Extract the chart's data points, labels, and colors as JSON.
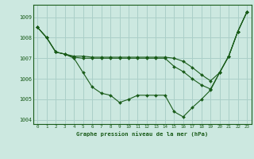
{
  "title": "Graphe pression niveau de la mer (hPa)",
  "background_color": "#cce8e0",
  "line_color": "#1a5c1a",
  "grid_color": "#aacfc8",
  "ylim": [
    1003.8,
    1009.6
  ],
  "xlim": [
    -0.5,
    23.5
  ],
  "yticks": [
    1004,
    1005,
    1006,
    1007,
    1008,
    1009
  ],
  "xticks": [
    0,
    1,
    2,
    3,
    4,
    5,
    6,
    7,
    8,
    9,
    10,
    11,
    12,
    13,
    14,
    15,
    16,
    17,
    18,
    19,
    20,
    21,
    22,
    23
  ],
  "series": [
    [
      1008.5,
      1008.0,
      1007.3,
      1007.2,
      1007.0,
      1006.3,
      1005.6,
      1005.3,
      1005.2,
      1004.85,
      1005.0,
      1005.2,
      1005.2,
      1005.2,
      1005.2,
      1004.4,
      1004.15,
      1004.6,
      1005.0,
      1005.45,
      1006.3,
      1007.1,
      1008.3,
      1009.25
    ],
    [
      1008.5,
      1008.0,
      1007.3,
      1007.2,
      1007.05,
      1007.0,
      1007.0,
      1007.0,
      1007.0,
      1007.0,
      1007.0,
      1007.0,
      1007.0,
      1007.0,
      1007.0,
      1006.6,
      1006.35,
      1006.0,
      1005.7,
      1005.5,
      1006.3,
      1007.1,
      1008.3,
      1009.25
    ],
    [
      1008.5,
      1008.0,
      1007.3,
      1007.2,
      1007.1,
      1007.1,
      1007.05,
      1007.05,
      1007.05,
      1007.05,
      1007.05,
      1007.05,
      1007.05,
      1007.05,
      1007.05,
      1007.0,
      1006.85,
      1006.55,
      1006.2,
      1005.9,
      1006.3,
      1007.1,
      1008.3,
      1009.25
    ]
  ]
}
